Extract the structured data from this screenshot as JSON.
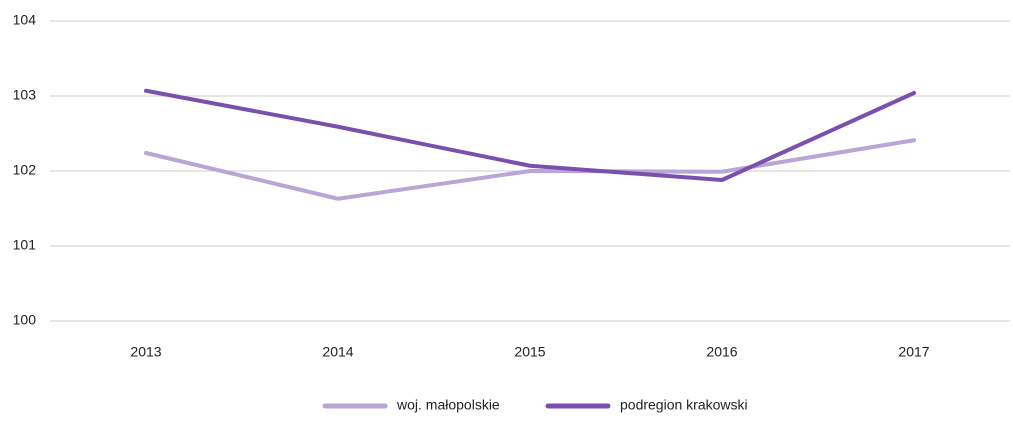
{
  "chart_data": {
    "type": "line",
    "categories": [
      "2013",
      "2014",
      "2015",
      "2016",
      "2017"
    ],
    "series": [
      {
        "name": "woj. małopolskie",
        "color": "#b9a5d6",
        "values": [
          102.24,
          101.63,
          102.0,
          101.99,
          102.41
        ]
      },
      {
        "name": "podregion krakowski",
        "color": "#7a4fae",
        "values": [
          103.07,
          102.59,
          102.07,
          101.88,
          103.04
        ]
      }
    ],
    "ylim": [
      100,
      104
    ],
    "yticks": [
      100,
      101,
      102,
      103,
      104
    ],
    "grid": true,
    "legend": "bottom"
  }
}
